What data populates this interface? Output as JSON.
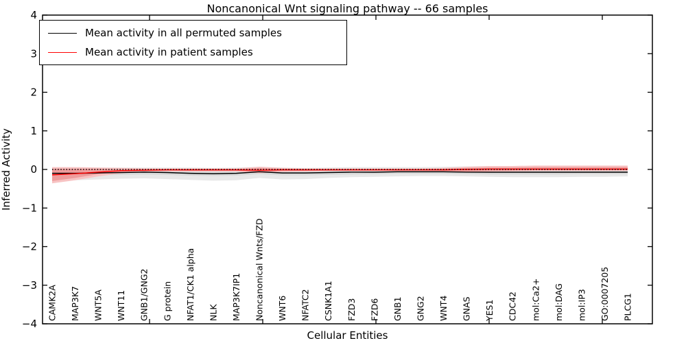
{
  "title": "Noncanonical Wnt signaling pathway -- 66 samples",
  "legend": {
    "items": [
      {
        "label": "Mean activity in all permuted samples",
        "color": "#000000"
      },
      {
        "label": "Mean activity in patient samples",
        "color": "#ff0000"
      }
    ]
  },
  "axes": {
    "ylabel": "Inferred Activity",
    "xlabel": "Cellular Entities",
    "yticks": [
      4,
      3,
      2,
      1,
      0,
      -1,
      -2,
      -3,
      -4
    ],
    "ylim": [
      -4,
      4
    ]
  },
  "colors": {
    "permuted_line": "#000000",
    "patient_line": "#ff0000",
    "permuted_band_outer": "#e8e8e8",
    "permuted_band_inner": "#d9d9d9",
    "patient_band_outer": "#f7c3c3",
    "patient_band_inner": "#ee9c9c",
    "zero_line": "#000000"
  },
  "chart_data": {
    "type": "line",
    "title": "Noncanonical Wnt signaling pathway -- 66 samples",
    "xlabel": "Cellular Entities",
    "ylabel": "Inferred Activity",
    "ylim": [
      -4,
      4
    ],
    "grid": false,
    "legend_position": "upper left",
    "zero_line": {
      "style": "dotted",
      "color": "#000000",
      "y": 0
    },
    "categories": [
      "CAMK2A",
      "MAP3K7",
      "WNT5A",
      "WNT11",
      "GNB1/GNG2",
      "G protein",
      "NFAT1/CK1 alpha",
      "NLK",
      "MAP3K7IP1",
      "Noncanonical Wnts/FZD",
      "WNT6",
      "NFATC2",
      "CSNK1A1",
      "FZD3",
      "FZD6",
      "GNB1",
      "GNG2",
      "WNT4",
      "GNAS",
      "YES1",
      "CDC42",
      "mol:Ca2+",
      "mol:DAG",
      "mol:IP3",
      "GO:0007205",
      "PLCG1"
    ],
    "series": [
      {
        "name": "Mean activity in all permuted samples",
        "color": "#000000",
        "values": [
          -0.1,
          -0.1,
          -0.09,
          -0.08,
          -0.07,
          -0.08,
          -0.1,
          -0.11,
          -0.1,
          -0.06,
          -0.09,
          -0.09,
          -0.08,
          -0.07,
          -0.07,
          -0.06,
          -0.06,
          -0.06,
          -0.07,
          -0.07,
          -0.07,
          -0.07,
          -0.07,
          -0.07,
          -0.07,
          -0.07
        ]
      },
      {
        "name": "Mean activity in patient samples",
        "color": "#ff0000",
        "values": [
          -0.14,
          -0.11,
          -0.07,
          -0.03,
          -0.02,
          -0.01,
          -0.01,
          -0.01,
          -0.01,
          -0.02,
          -0.01,
          -0.01,
          -0.01,
          -0.01,
          -0.01,
          -0.01,
          -0.01,
          -0.01,
          0.0,
          0.01,
          0.01,
          0.01,
          0.01,
          0.01,
          0.01,
          0.01
        ]
      }
    ],
    "bands": [
      {
        "name": "permuted-outer",
        "color": "#e8e8e8",
        "upper": [
          0.05,
          0.05,
          0.05,
          0.05,
          0.05,
          0.05,
          0.05,
          0.04,
          0.05,
          0.07,
          0.05,
          0.04,
          0.05,
          0.06,
          0.06,
          0.06,
          0.06,
          0.07,
          0.08,
          0.09,
          0.09,
          0.09,
          0.09,
          0.09,
          0.08,
          0.08
        ],
        "lower": [
          -0.3,
          -0.28,
          -0.26,
          -0.24,
          -0.23,
          -0.25,
          -0.27,
          -0.29,
          -0.28,
          -0.22,
          -0.26,
          -0.25,
          -0.22,
          -0.2,
          -0.19,
          -0.18,
          -0.17,
          -0.17,
          -0.18,
          -0.19,
          -0.2,
          -0.2,
          -0.2,
          -0.19,
          -0.19,
          -0.18
        ]
      },
      {
        "name": "permuted-inner",
        "color": "#d9d9d9",
        "upper": [
          -0.04,
          -0.04,
          -0.03,
          -0.02,
          -0.02,
          -0.02,
          -0.04,
          -0.05,
          -0.04,
          0.0,
          -0.02,
          -0.03,
          -0.02,
          -0.01,
          -0.01,
          -0.01,
          -0.01,
          -0.01,
          -0.01,
          -0.01,
          -0.01,
          -0.01,
          -0.01,
          -0.01,
          -0.01,
          -0.01
        ],
        "lower": [
          -0.17,
          -0.16,
          -0.15,
          -0.14,
          -0.13,
          -0.14,
          -0.16,
          -0.17,
          -0.16,
          -0.12,
          -0.15,
          -0.15,
          -0.14,
          -0.13,
          -0.12,
          -0.11,
          -0.11,
          -0.11,
          -0.12,
          -0.13,
          -0.13,
          -0.13,
          -0.13,
          -0.12,
          -0.12,
          -0.12
        ]
      },
      {
        "name": "patient-outer",
        "color": "#f7c3c3",
        "upper": [
          0.06,
          0.06,
          0.05,
          0.04,
          0.03,
          0.03,
          0.03,
          0.03,
          0.03,
          0.07,
          0.04,
          0.03,
          0.03,
          0.03,
          0.03,
          0.03,
          0.03,
          0.04,
          0.07,
          0.09,
          0.09,
          0.1,
          0.1,
          0.1,
          0.1,
          0.1
        ],
        "lower": [
          -0.36,
          -0.28,
          -0.18,
          -0.1,
          -0.06,
          -0.05,
          -0.05,
          -0.05,
          -0.05,
          -0.1,
          -0.06,
          -0.05,
          -0.04,
          -0.04,
          -0.04,
          -0.04,
          -0.04,
          -0.05,
          -0.08,
          -0.06,
          -0.05,
          -0.04,
          -0.04,
          -0.04,
          -0.04,
          -0.04
        ]
      },
      {
        "name": "patient-inner",
        "color": "#ee9c9c",
        "upper": [
          0.02,
          0.02,
          0.02,
          0.01,
          0.01,
          0.01,
          0.01,
          0.01,
          0.01,
          0.04,
          0.02,
          0.01,
          0.01,
          0.01,
          0.01,
          0.01,
          0.01,
          0.02,
          0.04,
          0.05,
          0.05,
          0.06,
          0.06,
          0.06,
          0.06,
          0.06
        ],
        "lower": [
          -0.3,
          -0.22,
          -0.12,
          -0.06,
          -0.04,
          -0.03,
          -0.03,
          -0.03,
          -0.03,
          -0.07,
          -0.04,
          -0.03,
          -0.02,
          -0.02,
          -0.02,
          -0.02,
          -0.02,
          -0.03,
          -0.06,
          -0.04,
          -0.03,
          -0.02,
          -0.02,
          -0.02,
          -0.02,
          -0.02
        ]
      }
    ]
  }
}
